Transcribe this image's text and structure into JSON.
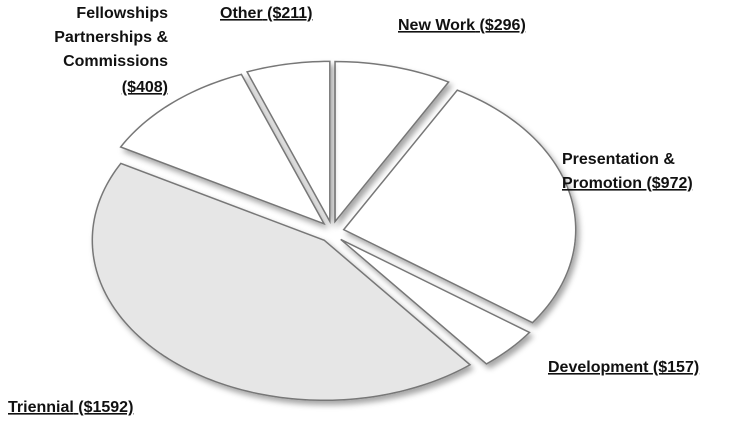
{
  "chart_data": {
    "type": "pie",
    "categories": [
      [
        "New Work"
      ],
      [
        "Presentation &",
        "Promotion"
      ],
      [
        "Development"
      ],
      [
        "Triennial"
      ],
      [
        "Fellowships",
        "Partnerships &",
        "Commissions"
      ],
      [
        "Other"
      ]
    ],
    "values": [
      296,
      972,
      157,
      1592,
      408,
      211
    ],
    "value_labels": [
      "($296)",
      "($972)",
      "($157)",
      "($1592)",
      "($408)",
      "($211)"
    ],
    "colors": [
      "#ffffff",
      "#ffffff",
      "#ffffff",
      "#e6e6e6",
      "#ffffff",
      "#ffffff"
    ]
  }
}
